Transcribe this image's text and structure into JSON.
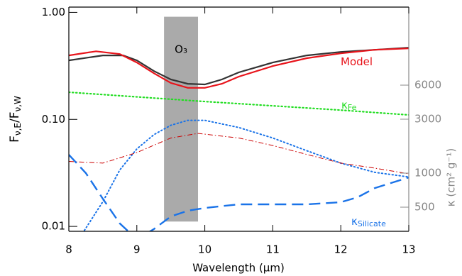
{
  "chart_data": {
    "type": "line",
    "xlabel": "Wavelength (μm)",
    "ylabel_parts": [
      "F",
      "ν,E",
      "/F",
      "ν,W"
    ],
    "y2label": "κ (cm² g⁻¹)",
    "xlim": [
      8,
      13
    ],
    "xticks": [
      8,
      9,
      10,
      11,
      12,
      13
    ],
    "ylim": [
      0.009,
      1.12
    ],
    "ylog": true,
    "yticks": [
      0.01,
      {
        "value": 0.1,
        "label": "0.10"
      },
      {
        "value": 1,
        "label": "1.00"
      }
    ],
    "y2lim": [
      306,
      29400
    ],
    "y2log": true,
    "y2ticks": [
      500,
      1000,
      3000,
      6000
    ],
    "band": {
      "label": "O₃",
      "x": [
        9.4,
        9.9
      ],
      "y": [
        0.0111,
        0.91
      ],
      "color": "#aaaaaa"
    },
    "series": [
      {
        "color": "#333333",
        "style": "solid",
        "width": 2.2,
        "x": [
          8,
          8.5,
          8.8,
          9,
          9.25,
          9.5,
          9.75,
          10,
          10.25,
          10.5,
          11,
          11.5,
          12,
          12.5,
          13
        ],
        "values": [
          0.356,
          0.396,
          0.396,
          0.356,
          0.283,
          0.236,
          0.215,
          0.212,
          0.236,
          0.275,
          0.34,
          0.396,
          0.427,
          0.447,
          0.468
        ]
      },
      {
        "name": "Model",
        "color": "#e8141b",
        "style": "solid",
        "width": 2.2,
        "x": [
          8,
          8.4,
          8.75,
          9,
          9.25,
          9.5,
          9.75,
          10,
          10.25,
          10.5,
          11,
          11.5,
          12,
          12.5,
          13
        ],
        "values": [
          0.396,
          0.433,
          0.408,
          0.34,
          0.27,
          0.219,
          0.197,
          0.197,
          0.215,
          0.251,
          0.315,
          0.373,
          0.414,
          0.447,
          0.461
        ]
      },
      {
        "name": "κ",
        "name_sub": "Fe",
        "color": "#22dd22",
        "style": "dotted",
        "width": 2.2,
        "axis": "y2",
        "x": [
          8,
          10,
          12,
          13
        ],
        "values": [
          5190,
          4300,
          3610,
          3270
        ]
      },
      {
        "color": "#1a73e8",
        "style": "dotted",
        "width": 2,
        "x": [
          8.2,
          8.5,
          8.75,
          9,
          9.25,
          9.5,
          9.75,
          10,
          10.5,
          11,
          11.5,
          12,
          12.5,
          13
        ],
        "values": [
          0.0086,
          0.017,
          0.0337,
          0.053,
          0.072,
          0.088,
          0.098,
          0.098,
          0.084,
          0.067,
          0.051,
          0.039,
          0.032,
          0.029
        ]
      },
      {
        "color": "#cc0000",
        "style": "dashdot",
        "width": 1,
        "x": [
          8,
          8.5,
          9,
          9.5,
          9.9,
          10.5,
          11,
          11.5,
          12,
          12.5,
          13
        ],
        "values": [
          0.0405,
          0.039,
          0.049,
          0.067,
          0.074,
          0.067,
          0.057,
          0.047,
          0.039,
          0.035,
          0.031
        ]
      },
      {
        "name": "κ",
        "name_sub": "Silicate",
        "color": "#1a73e8",
        "style": "dashed",
        "width": 2.4,
        "axis": "y2",
        "x": [
          8,
          8.25,
          8.5,
          8.75,
          9,
          9.25,
          9.5,
          9.75,
          10,
          10.5,
          11,
          11.5,
          12,
          12.25,
          12.5,
          13
        ],
        "values": [
          1455,
          1000,
          594,
          359,
          260,
          320,
          414,
          465,
          492,
          530,
          530,
          530,
          553,
          612,
          738,
          916
        ]
      }
    ]
  }
}
